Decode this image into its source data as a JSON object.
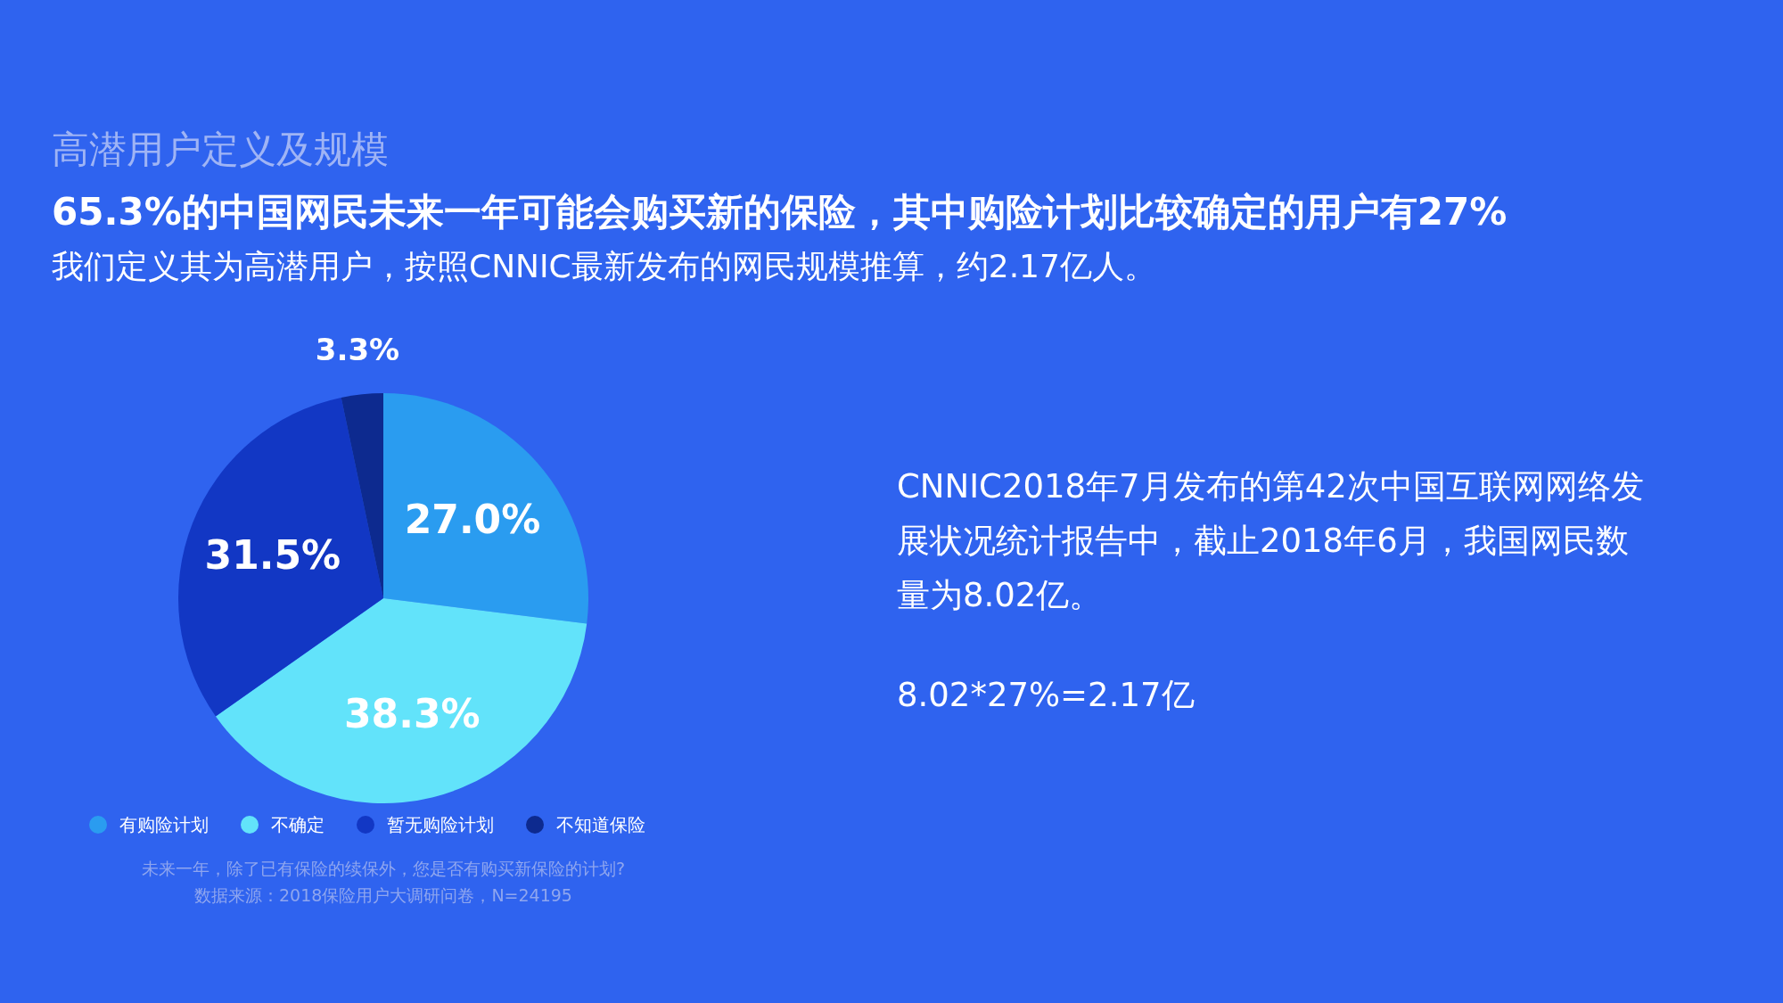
{
  "chart_data": {
    "type": "pie",
    "title": "高潜用户定义及规模",
    "subtitle": "65.3%的中国网民未来一年可能会购买新的保险，其中购险计划比较确定的用户有27%",
    "categories": [
      "有购险计划",
      "不确定",
      "暂无购险计划",
      "不知道保险"
    ],
    "values": [
      27.0,
      38.3,
      31.5,
      3.3
    ],
    "colors": [
      "#2a9cf0",
      "#62e3fa",
      "#1237c4",
      "#0d2a8f"
    ],
    "value_labels": [
      "27.0%",
      "38.3%",
      "31.5%",
      "3.3%"
    ],
    "legend": "bottom",
    "annotations": [
      "我们定义其为高潜用户，按照CNNIC最新发布的网民规模推算，约2.17亿人。",
      "CNNIC2018年7月发布的第42次中国互联网网络发展状况统计报告中，截止2018年6月，我国网民数量为8.02亿。",
      "8.02*27%=2.17亿",
      "未来一年，除了已有保险的续保外，您是否有购买新保险的计划?",
      "数据来源：2018保险用户大调研问卷，N=24195"
    ]
  }
}
